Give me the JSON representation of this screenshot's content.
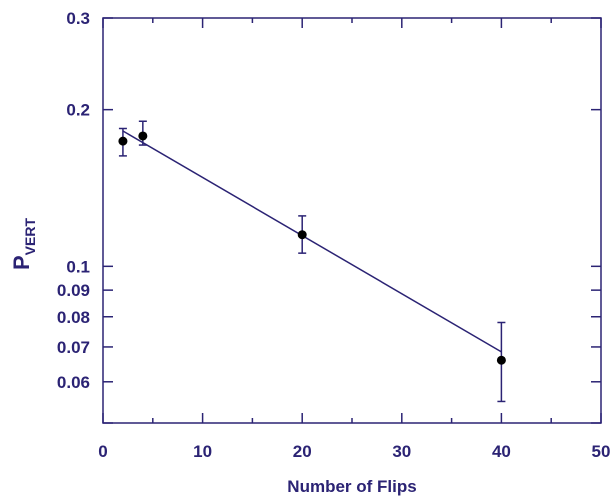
{
  "chart_data": {
    "type": "scatter",
    "xlabel": "Number of Flips",
    "ylabel_main": "P",
    "ylabel_sub": "VERT",
    "xlim": [
      0,
      50
    ],
    "ylim": [
      0.05,
      0.3
    ],
    "yscale": "log",
    "x_ticks": [
      0,
      10,
      20,
      30,
      40,
      50
    ],
    "x_tick_labels": [
      "0",
      "10",
      "20",
      "30",
      "40",
      "50"
    ],
    "y_labeled_ticks": [
      0.06,
      0.07,
      0.08,
      0.09,
      0.1,
      0.2,
      0.3
    ],
    "y_tick_labels": [
      "0.06",
      "0.07",
      "0.08",
      "0.09",
      "0.1",
      "0.2",
      "0.3"
    ],
    "y_minor_ticks": [
      0.05,
      0.06,
      0.07,
      0.08,
      0.09,
      0.1,
      0.2,
      0.3
    ],
    "points": [
      {
        "x": 2,
        "y": 0.174,
        "err_low": 0.163,
        "err_high": 0.184
      },
      {
        "x": 4,
        "y": 0.178,
        "err_low": 0.171,
        "err_high": 0.19
      },
      {
        "x": 20,
        "y": 0.115,
        "err_low": 0.106,
        "err_high": 0.125
      },
      {
        "x": 40,
        "y": 0.066,
        "err_low": 0.055,
        "err_high": 0.078
      }
    ],
    "fit_line": {
      "x": [
        2,
        40
      ],
      "y": [
        0.182,
        0.0685
      ]
    },
    "colors": {
      "axis": "#2b2374",
      "point": "#000000",
      "line": "#2b2374"
    },
    "grid": false,
    "legend": "none"
  }
}
